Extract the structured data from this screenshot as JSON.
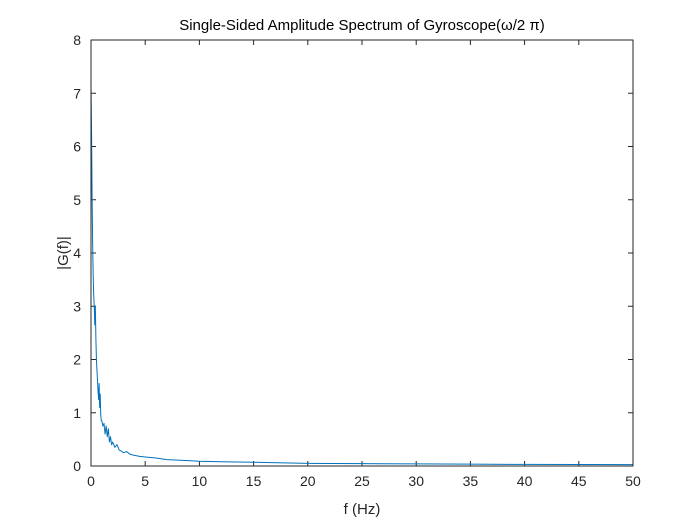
{
  "chart_data": {
    "type": "line",
    "title": "Single-Sided Amplitude Spectrum of Gyroscope(ω/2 π)",
    "xlabel": "f (Hz)",
    "ylabel": "|G(f)|",
    "xlim": [
      0,
      50
    ],
    "ylim": [
      0,
      8
    ],
    "xticks": [
      0,
      5,
      10,
      15,
      20,
      25,
      30,
      35,
      40,
      45,
      50
    ],
    "yticks": [
      0,
      1,
      2,
      3,
      4,
      5,
      6,
      7,
      8
    ],
    "grid": false,
    "line_color": "#0072BD",
    "series": [
      {
        "x": [
          0,
          0.05,
          0.1,
          0.15,
          0.2,
          0.25,
          0.3,
          0.35,
          0.4,
          0.45,
          0.5,
          0.55,
          0.6,
          0.65,
          0.7,
          0.75,
          0.8,
          0.85,
          0.9,
          0.95,
          1.0,
          1.1,
          1.2,
          1.3,
          1.4,
          1.5,
          1.6,
          1.7,
          1.8,
          1.9,
          2.0,
          2.2,
          2.4,
          2.6,
          2.8,
          3.0,
          3.3,
          3.6,
          4.0,
          4.5,
          5.0,
          6.0,
          7.0,
          8.0,
          9.0,
          10,
          12,
          15,
          20,
          25,
          30,
          35,
          40,
          45,
          50
        ],
        "y": [
          7.2,
          6.3,
          5.1,
          4.2,
          3.6,
          3.2,
          3.0,
          2.65,
          3.0,
          2.4,
          2.0,
          1.8,
          1.6,
          1.4,
          1.25,
          1.55,
          1.1,
          1.35,
          0.95,
          0.85,
          0.85,
          0.75,
          0.8,
          0.6,
          0.75,
          0.55,
          0.7,
          0.45,
          0.55,
          0.4,
          0.45,
          0.35,
          0.4,
          0.3,
          0.28,
          0.25,
          0.27,
          0.22,
          0.2,
          0.18,
          0.17,
          0.15,
          0.12,
          0.11,
          0.1,
          0.09,
          0.08,
          0.07,
          0.05,
          0.045,
          0.04,
          0.035,
          0.03,
          0.028,
          0.025
        ]
      }
    ]
  }
}
